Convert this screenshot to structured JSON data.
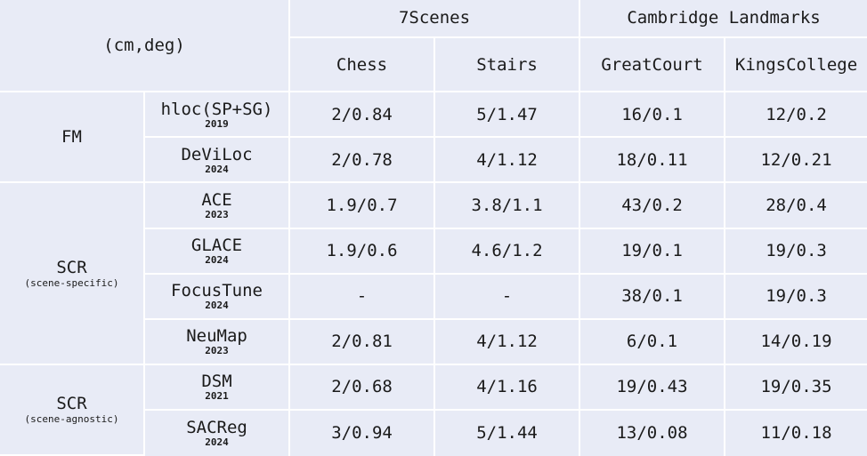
{
  "header": {
    "corner": "(cm,deg)",
    "datasets": [
      {
        "label": "7Scenes",
        "scenes": [
          "Chess",
          "Stairs"
        ]
      },
      {
        "label": "Cambridge Landmarks",
        "scenes": [
          "GreatCourt",
          "KingsCollege"
        ]
      }
    ]
  },
  "groups": [
    {
      "name": "FM",
      "subtitle": "",
      "methods": [
        {
          "name": "hloc(SP+SG)",
          "year": "2019",
          "values": [
            "2/0.84",
            "5/1.47",
            "16/0.1",
            "12/0.2"
          ]
        },
        {
          "name": "DeViLoc",
          "year": "2024",
          "values": [
            "2/0.78",
            "4/1.12",
            "18/0.11",
            "12/0.21"
          ]
        }
      ]
    },
    {
      "name": "SCR",
      "subtitle": "(scene-specific)",
      "methods": [
        {
          "name": "ACE",
          "year": "2023",
          "values": [
            "1.9/0.7",
            "3.8/1.1",
            "43/0.2",
            "28/0.4"
          ]
        },
        {
          "name": "GLACE",
          "year": "2024",
          "values": [
            "1.9/0.6",
            "4.6/1.2",
            "19/0.1",
            "19/0.3"
          ]
        },
        {
          "name": "FocusTune",
          "year": "2024",
          "values": [
            "-",
            "-",
            "38/0.1",
            "19/0.3"
          ]
        },
        {
          "name": "NeuMap",
          "year": "2023",
          "values": [
            "2/0.81",
            "4/1.12",
            "6/0.1",
            "14/0.19"
          ]
        }
      ]
    },
    {
      "name": "SCR",
      "subtitle": "(scene-agnostic)",
      "methods": [
        {
          "name": "DSM",
          "year": "2021",
          "values": [
            "2/0.68",
            "4/1.16",
            "19/0.43",
            "19/0.35"
          ]
        },
        {
          "name": "SACReg",
          "year": "2024",
          "values": [
            "3/0.94",
            "5/1.44",
            "13/0.08",
            "11/0.18"
          ]
        }
      ]
    }
  ]
}
